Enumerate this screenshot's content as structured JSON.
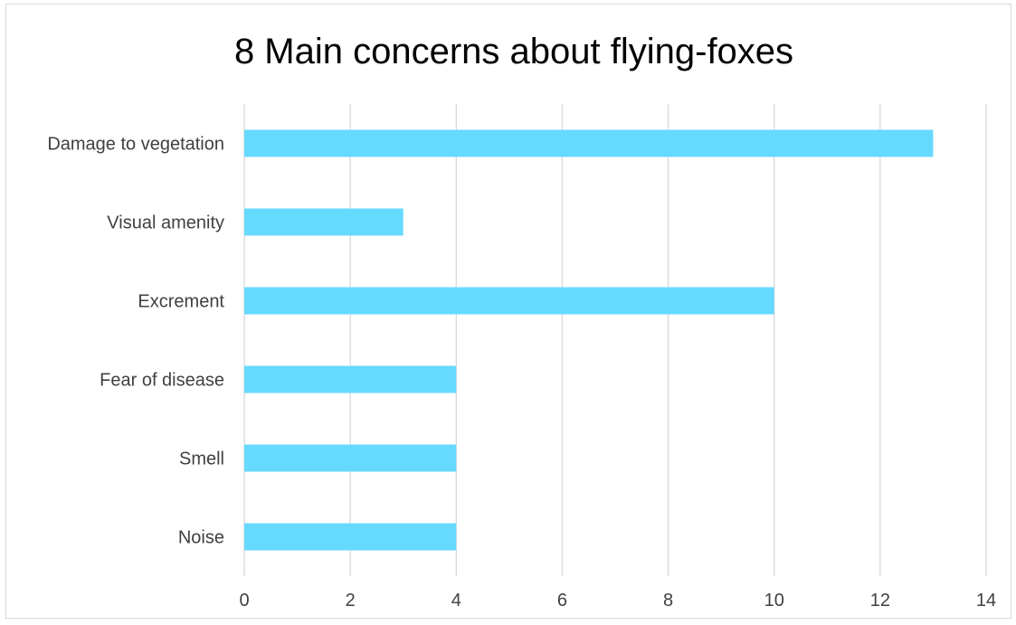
{
  "chart_data": {
    "type": "bar",
    "orientation": "horizontal",
    "title": "8 Main concerns about flying-foxes",
    "categories": [
      "Damage to vegetation",
      "Visual amenity",
      "Excrement",
      "Fear of disease",
      "Smell",
      "Noise"
    ],
    "values": [
      13,
      3,
      10,
      4,
      4,
      4
    ],
    "xlim": [
      0,
      14
    ],
    "x_ticks": [
      0,
      2,
      4,
      6,
      8,
      10,
      12,
      14
    ],
    "grid": "vertical",
    "legend": "none",
    "bar_color": "#66d9ff",
    "grid_color": "#d9d9d9"
  }
}
